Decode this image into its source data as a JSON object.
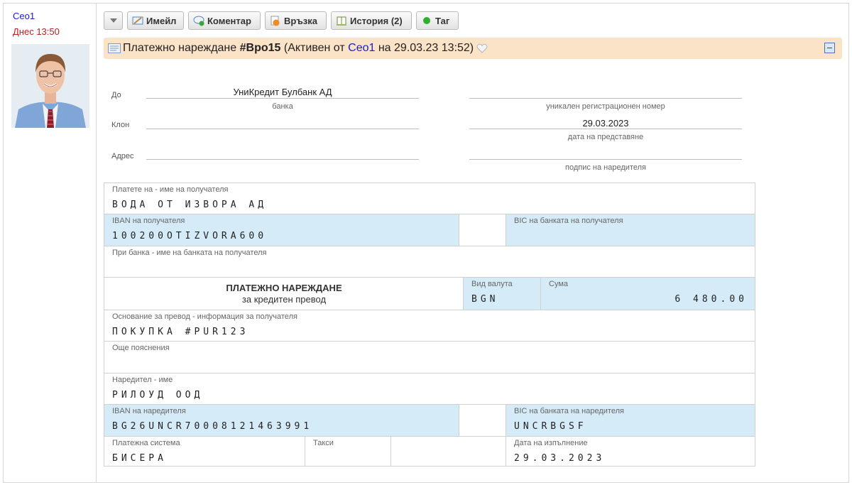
{
  "comment": {
    "author": "Ceo1",
    "time": "Днес 13:50"
  },
  "toolbar": {
    "email_label": "Имейл",
    "comment_label": "Коментар",
    "link_label": "Връзка",
    "history_label": "История (2)",
    "tag_label": "Таг"
  },
  "header": {
    "doc_type": "Платежно нареждане",
    "doc_id": "#Bpo15",
    "status_prefix": "(Активен от",
    "user": "Ceo1",
    "status_suffix": "на 29.03.23 13:52)"
  },
  "form": {
    "to_label": "До",
    "bank_value": "УниКредит Булбанк АД",
    "bank_caption": "банка",
    "reg_caption": "уникален регистрационен номер",
    "branch_label": "Клон",
    "date_value": "29.03.2023",
    "date_caption": "дата на представяне",
    "address_label": "Адрес",
    "signature_caption": "подпис на наредителя"
  },
  "table": {
    "payee_label": "Платете на - име на получателя",
    "payee_value": "ВОДА ОТ ИЗВОРА АД",
    "iban_payee_label": "IBAN на получателя",
    "iban_payee_value": "100200OTIZVORA600",
    "bic_payee_label": "BIC на банката на получателя",
    "bank_payee_label": "При банка - име на банката на получателя",
    "order_title": "ПЛАТЕЖНО НАРЕЖДАНЕ",
    "order_subtitle": "за кредитен превод",
    "currency_label": "Вид валута",
    "currency_value": "BGN",
    "amount_label": "Сума",
    "amount_value": "6 480.00",
    "reason_label": "Основание за превод - информация за получателя",
    "reason_value": "ПОКУПКА #PUR123",
    "notes_label": "Още пояснения",
    "orderer_label": "Наредител - име",
    "orderer_value": "РИЛОУД ООД",
    "iban_orderer_label": "IBAN на наредителя",
    "iban_orderer_value": "BG26UNCR70008121463991",
    "bic_orderer_label": "BIC на банката на наредителя",
    "bic_orderer_value": "UNCRBGSF",
    "system_label": "Платежна система",
    "system_value": "БИСЕРА",
    "fees_label": "Такси",
    "exec_date_label": "Дата на изпълнение",
    "exec_date_value": "29.03.2023"
  }
}
